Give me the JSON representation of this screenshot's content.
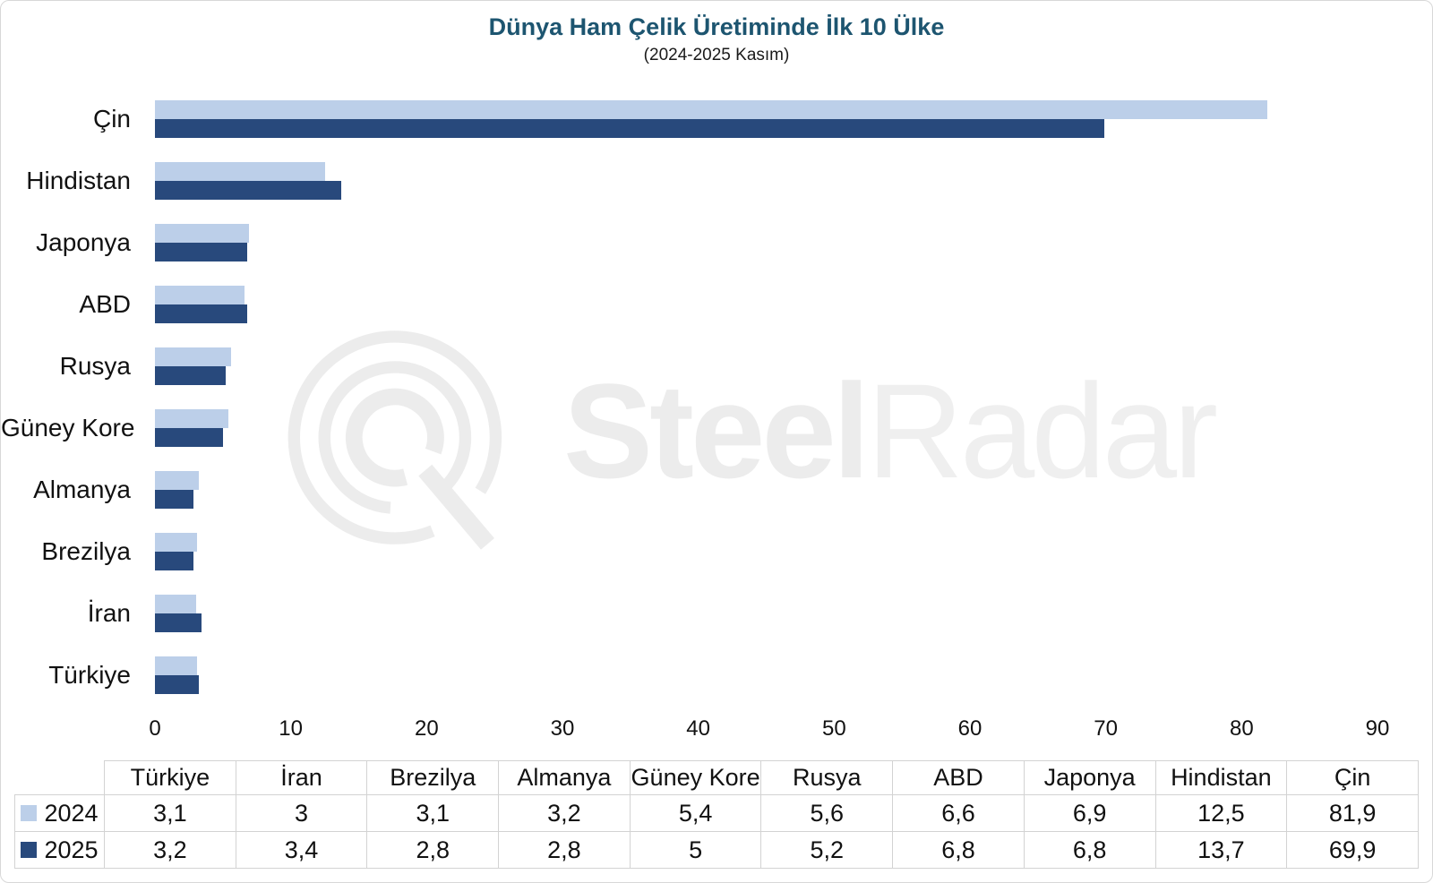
{
  "page": {
    "title": "Dünya Ham Çelik Üretiminde İlk 10 Ülke",
    "subtitle": "(2024-2025 Kasım)"
  },
  "watermark": {
    "logo": "steelradar-radar-logo",
    "brand_bold": "Steel",
    "brand_light": "Radar"
  },
  "colors": {
    "series_2024": "#bccfe9",
    "series_2025": "#28497c",
    "title_text": "#1d5570",
    "watermark_gray": "#ececec",
    "table_border": "#d3d3d3"
  },
  "chart_data": {
    "type": "bar",
    "orientation": "horizontal",
    "title": "Dünya Ham Çelik Üretiminde İlk 10 Ülke",
    "subtitle": "(2024-2025 Kasım)",
    "categories": [
      "Çin",
      "Hindistan",
      "Japonya",
      "ABD",
      "Rusya",
      "Güney Kore",
      "Almanya",
      "Brezilya",
      "İran",
      "Türkiye"
    ],
    "series": [
      {
        "name": "2024",
        "color": "#bccfe9",
        "values": [
          81.9,
          12.5,
          6.9,
          6.6,
          5.6,
          5.4,
          3.2,
          3.1,
          3.0,
          3.1
        ]
      },
      {
        "name": "2025",
        "color": "#28497c",
        "values": [
          69.9,
          13.7,
          6.8,
          6.8,
          5.2,
          5.0,
          2.8,
          2.8,
          3.4,
          3.2
        ]
      }
    ],
    "xlim": [
      0,
      90
    ],
    "x_ticks": [
      0,
      10,
      20,
      30,
      40,
      50,
      60,
      70,
      80,
      90
    ],
    "grid": false,
    "legend_position": "bottom-table"
  },
  "table": {
    "corner_label": "",
    "columns": [
      "Türkiye",
      "İran",
      "Brezilya",
      "Almanya",
      "Güney Kore",
      "Rusya",
      "ABD",
      "Japonya",
      "Hindistan",
      "Çin"
    ],
    "rows": [
      {
        "label": "2024",
        "swatch_color": "#bccfe9",
        "values": [
          "3,1",
          "3",
          "3,1",
          "3,2",
          "5,4",
          "5,6",
          "6,6",
          "6,9",
          "12,5",
          "81,9"
        ]
      },
      {
        "label": "2025",
        "swatch_color": "#28497c",
        "values": [
          "3,2",
          "3,4",
          "2,8",
          "2,8",
          "5",
          "5,2",
          "6,8",
          "6,8",
          "13,7",
          "69,9"
        ]
      }
    ]
  }
}
